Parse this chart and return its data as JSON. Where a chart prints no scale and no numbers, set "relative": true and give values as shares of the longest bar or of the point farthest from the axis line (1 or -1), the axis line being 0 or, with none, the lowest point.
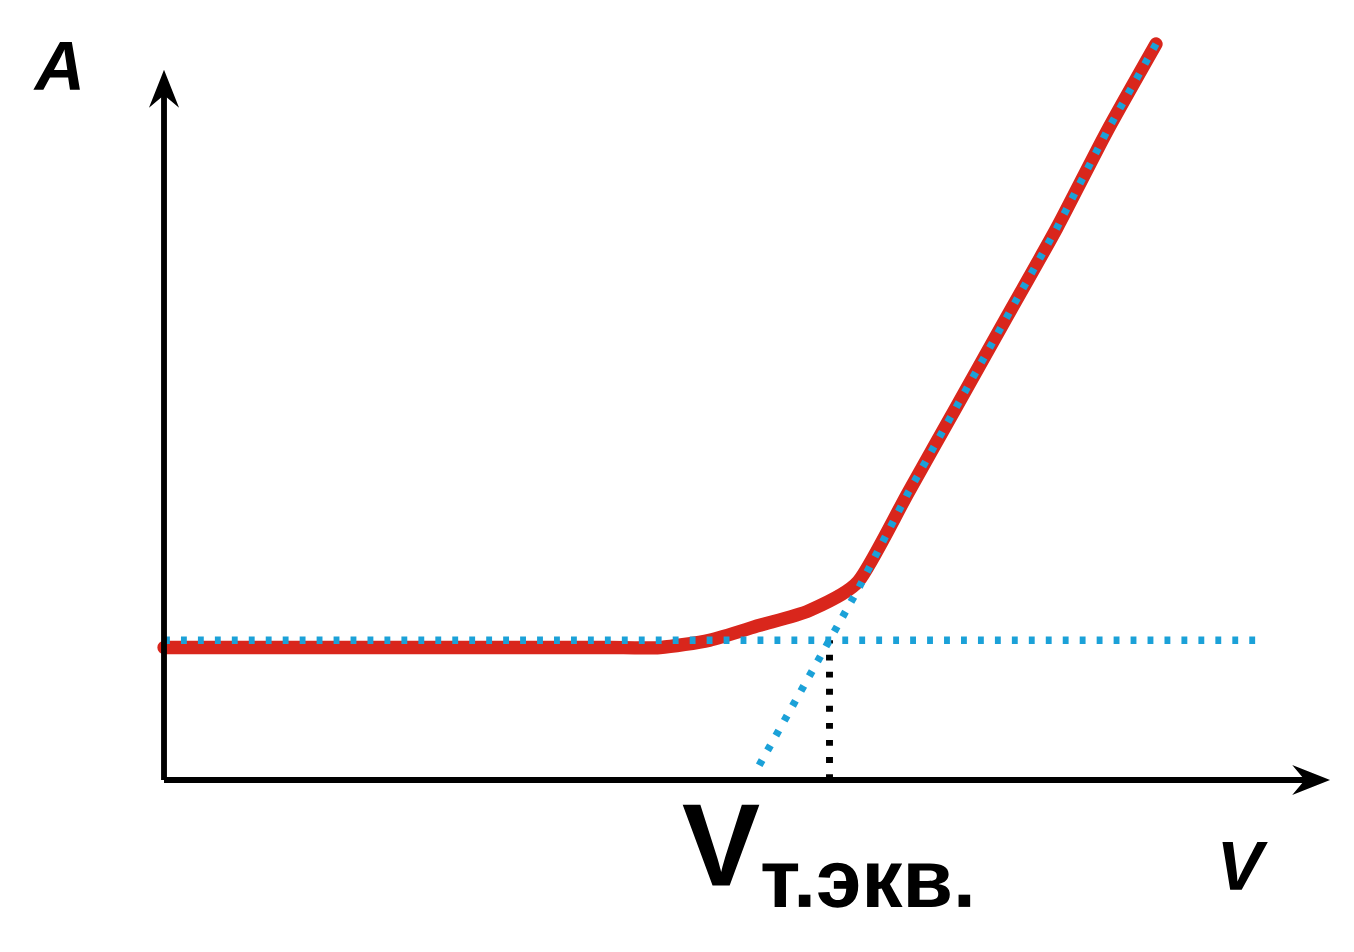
{
  "chart_data": {
    "type": "line",
    "relative": true,
    "xlabel": "V",
    "ylabel": "A",
    "categories": [
      null,
      null,
      null,
      null,
      null,
      null,
      null,
      null,
      null,
      null,
      null,
      null,
      null,
      null,
      null,
      null,
      null,
      null,
      null,
      null,
      null,
      null,
      null
    ],
    "series": [
      {
        "color": "#d9261c",
        "values": [
          0.18,
          0.18,
          0.18,
          0.18,
          0.18,
          0.18,
          0.18,
          0.18,
          0.18,
          0.18,
          0.18,
          0.19,
          0.21,
          0.23,
          0.27,
          0.39,
          0.51,
          0.63,
          0.75,
          0.88,
          1.0,
          null,
          null
        ]
      },
      {
        "color": "#1ba1d8",
        "line_style": "dotted",
        "values": [
          0.19,
          0.19,
          0.19,
          0.19,
          0.19,
          0.19,
          0.19,
          0.19,
          0.19,
          0.19,
          0.19,
          0.19,
          0.19,
          0.19,
          0.19,
          0.19,
          0.19,
          0.19,
          0.19,
          0.19,
          0.19,
          0.19,
          0.19
        ]
      },
      {
        "color": "#1ba1d8",
        "line_style": "dotted",
        "values": [
          null,
          null,
          null,
          null,
          null,
          null,
          null,
          null,
          null,
          null,
          null,
          null,
          0.02,
          0.14,
          0.26,
          0.39,
          0.51,
          0.63,
          0.75,
          0.88,
          1.0,
          null,
          null
        ]
      }
    ],
    "annotations": [
      "V$_{т.экв.}$"
    ]
  }
}
